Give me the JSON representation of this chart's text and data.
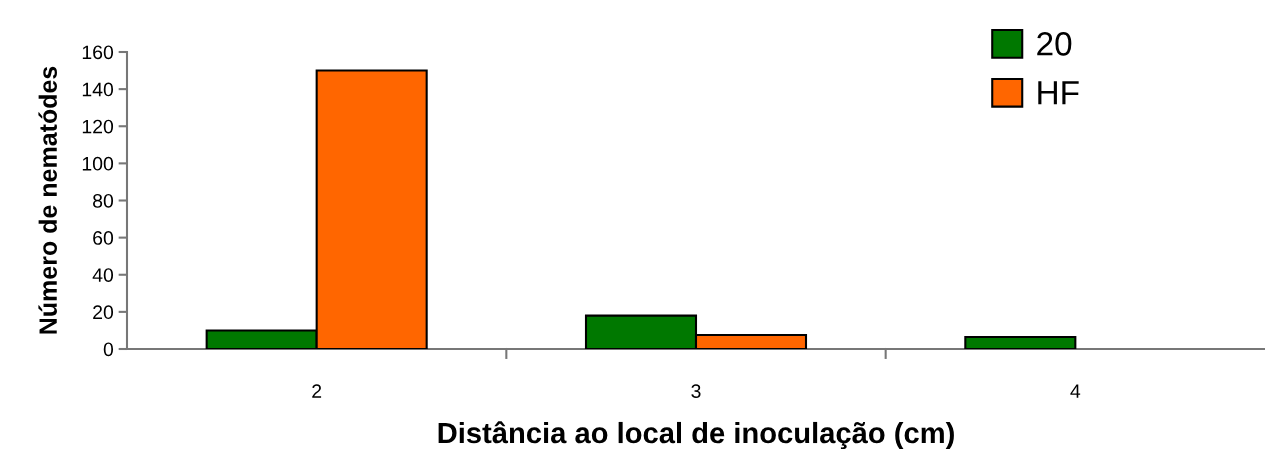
{
  "chart_data": {
    "type": "bar",
    "xlabel": "Distância ao local de inoculação (cm)",
    "ylabel": "Número de nematódes",
    "categories": [
      "2",
      "3",
      "4"
    ],
    "series": [
      {
        "name": "20",
        "color": "#007800",
        "values": [
          10,
          18,
          6.5
        ]
      },
      {
        "name": "HF",
        "color": "#ff6600",
        "values": [
          150,
          7.5,
          null
        ]
      }
    ],
    "ylim": [
      0,
      160
    ],
    "yticks": [
      0,
      20,
      40,
      60,
      80,
      100,
      120,
      140,
      160
    ],
    "grid": false,
    "legend": "top right"
  }
}
